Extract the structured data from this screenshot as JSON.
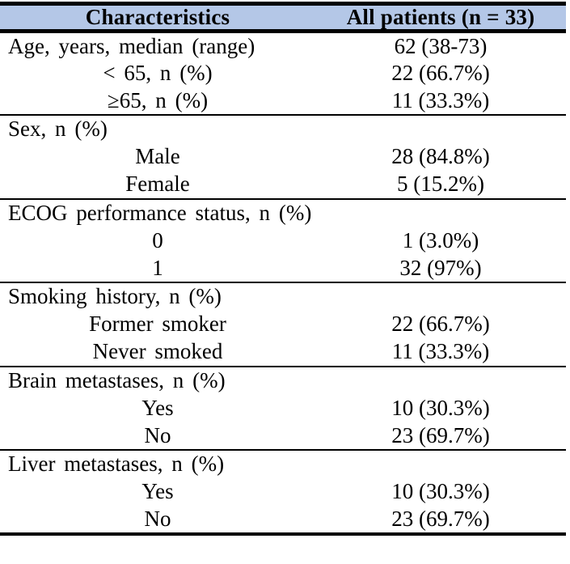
{
  "colors": {
    "header_bg": "#b4c7e7",
    "border": "#000000",
    "page_bg": "#ffffff"
  },
  "chart_data": {
    "type": "table",
    "columns": [
      "Characteristics",
      "All patients (n = 33)"
    ],
    "rows": [
      {
        "label": "Age, years, median (range)",
        "value": "62 (38-73)",
        "level": 0
      },
      {
        "label": "< 65, n (%)",
        "value": "22 (66.7%)",
        "level": 1
      },
      {
        "label": "≥65, n (%)",
        "value": "11 (33.3%)",
        "level": 1
      },
      {
        "label": "Sex, n (%)",
        "value": "",
        "level": 0
      },
      {
        "label": "Male",
        "value": "28 (84.8%)",
        "level": 1
      },
      {
        "label": "Female",
        "value": "5 (15.2%)",
        "level": 1
      },
      {
        "label": "ECOG performance status, n (%)",
        "value": "",
        "level": 0
      },
      {
        "label": "0",
        "value": "1 (3.0%)",
        "level": 1
      },
      {
        "label": "1",
        "value": "32 (97%)",
        "level": 1
      },
      {
        "label": "Smoking history, n (%)",
        "value": "",
        "level": 0
      },
      {
        "label": "Former smoker",
        "value": "22 (66.7%)",
        "level": 1
      },
      {
        "label": "Never smoked",
        "value": "11 (33.3%)",
        "level": 1
      },
      {
        "label": "Brain metastases, n (%)",
        "value": "",
        "level": 0
      },
      {
        "label": "Yes",
        "value": "10 (30.3%)",
        "level": 1
      },
      {
        "label": "No",
        "value": "23 (69.7%)",
        "level": 1
      },
      {
        "label": "Liver metastases, n (%)",
        "value": "",
        "level": 0
      },
      {
        "label": "Yes",
        "value": "10 (30.3%)",
        "level": 1
      },
      {
        "label": "No",
        "value": "23 (69.7%)",
        "level": 1
      }
    ]
  }
}
